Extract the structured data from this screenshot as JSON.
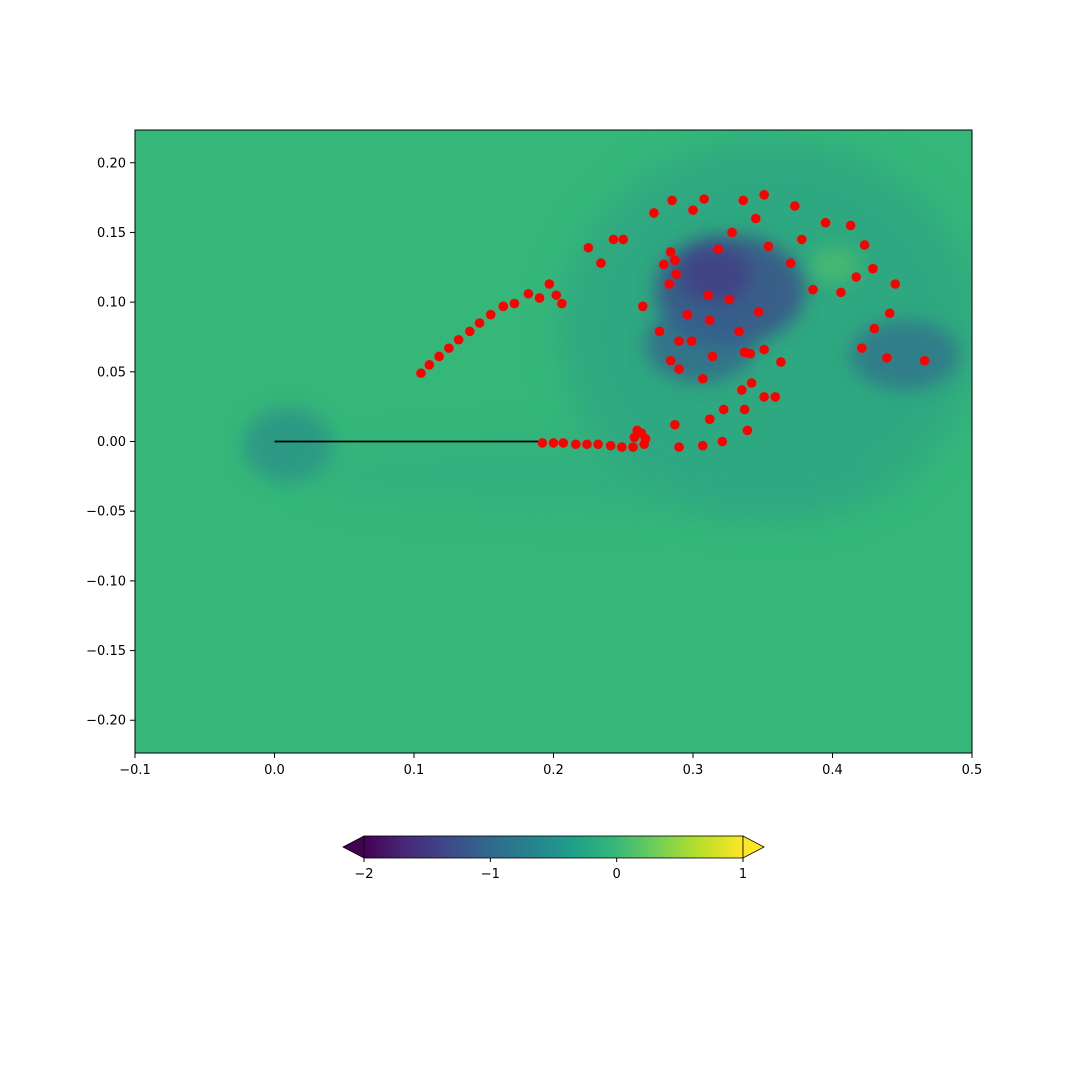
{
  "chart_data": {
    "type": "scatter",
    "xlim": [
      -0.1,
      0.5
    ],
    "ylim": [
      -0.2235,
      0.2235
    ],
    "x_ticks": [
      {
        "value": -0.1,
        "label": "−0.1"
      },
      {
        "value": 0.0,
        "label": "0.0"
      },
      {
        "value": 0.1,
        "label": "0.1"
      },
      {
        "value": 0.2,
        "label": "0.2"
      },
      {
        "value": 0.3,
        "label": "0.3"
      },
      {
        "value": 0.4,
        "label": "0.4"
      },
      {
        "value": 0.5,
        "label": "0.5"
      }
    ],
    "y_ticks": [
      {
        "value": 0.2,
        "label": "0.20"
      },
      {
        "value": 0.15,
        "label": "0.15"
      },
      {
        "value": 0.1,
        "label": "0.10"
      },
      {
        "value": 0.05,
        "label": "0.05"
      },
      {
        "value": 0.0,
        "label": "0.00"
      },
      {
        "value": -0.05,
        "label": "−0.05"
      },
      {
        "value": -0.1,
        "label": "−0.10"
      },
      {
        "value": -0.15,
        "label": "−0.15"
      },
      {
        "value": -0.2,
        "label": "−0.20"
      }
    ],
    "grid": false,
    "background_field": {
      "colormap": "viridis",
      "baseline_color": "#35b779",
      "vortex_regions": [
        {
          "x": 0.32,
          "y": 0.12,
          "strength": -1.2
        },
        {
          "x": 0.305,
          "y": 0.075,
          "strength": -0.9
        },
        {
          "x": 0.45,
          "y": 0.07,
          "strength": -0.6
        },
        {
          "x": 0.012,
          "y": -0.005,
          "strength": -0.4
        }
      ]
    },
    "plate": {
      "x": [
        0.0,
        0.19
      ],
      "y": [
        0.0,
        0.0
      ],
      "color": "#000000"
    },
    "points_color": "#ff0000",
    "points": [
      {
        "x": 0.105,
        "y": 0.049
      },
      {
        "x": 0.111,
        "y": 0.055
      },
      {
        "x": 0.118,
        "y": 0.061
      },
      {
        "x": 0.125,
        "y": 0.067
      },
      {
        "x": 0.132,
        "y": 0.073
      },
      {
        "x": 0.14,
        "y": 0.079
      },
      {
        "x": 0.147,
        "y": 0.085
      },
      {
        "x": 0.155,
        "y": 0.091
      },
      {
        "x": 0.164,
        "y": 0.097
      },
      {
        "x": 0.172,
        "y": 0.099
      },
      {
        "x": 0.182,
        "y": 0.106
      },
      {
        "x": 0.19,
        "y": 0.103
      },
      {
        "x": 0.197,
        "y": 0.113
      },
      {
        "x": 0.202,
        "y": 0.105
      },
      {
        "x": 0.206,
        "y": 0.099
      },
      {
        "x": 0.225,
        "y": 0.139
      },
      {
        "x": 0.234,
        "y": 0.128
      },
      {
        "x": 0.243,
        "y": 0.145
      },
      {
        "x": 0.25,
        "y": 0.145
      },
      {
        "x": 0.272,
        "y": 0.164
      },
      {
        "x": 0.285,
        "y": 0.173
      },
      {
        "x": 0.3,
        "y": 0.166
      },
      {
        "x": 0.308,
        "y": 0.174
      },
      {
        "x": 0.336,
        "y": 0.173
      },
      {
        "x": 0.351,
        "y": 0.177
      },
      {
        "x": 0.373,
        "y": 0.169
      },
      {
        "x": 0.395,
        "y": 0.157
      },
      {
        "x": 0.413,
        "y": 0.155
      },
      {
        "x": 0.423,
        "y": 0.141
      },
      {
        "x": 0.429,
        "y": 0.124
      },
      {
        "x": 0.445,
        "y": 0.113
      },
      {
        "x": 0.417,
        "y": 0.118
      },
      {
        "x": 0.406,
        "y": 0.107
      },
      {
        "x": 0.386,
        "y": 0.109
      },
      {
        "x": 0.37,
        "y": 0.128
      },
      {
        "x": 0.378,
        "y": 0.145
      },
      {
        "x": 0.354,
        "y": 0.14
      },
      {
        "x": 0.345,
        "y": 0.16
      },
      {
        "x": 0.328,
        "y": 0.15
      },
      {
        "x": 0.318,
        "y": 0.138
      },
      {
        "x": 0.284,
        "y": 0.136
      },
      {
        "x": 0.287,
        "y": 0.13
      },
      {
        "x": 0.279,
        "y": 0.127
      },
      {
        "x": 0.288,
        "y": 0.12
      },
      {
        "x": 0.283,
        "y": 0.113
      },
      {
        "x": 0.311,
        "y": 0.105
      },
      {
        "x": 0.326,
        "y": 0.102
      },
      {
        "x": 0.264,
        "y": 0.097
      },
      {
        "x": 0.296,
        "y": 0.091
      },
      {
        "x": 0.347,
        "y": 0.093
      },
      {
        "x": 0.312,
        "y": 0.087
      },
      {
        "x": 0.276,
        "y": 0.079
      },
      {
        "x": 0.333,
        "y": 0.079
      },
      {
        "x": 0.29,
        "y": 0.072
      },
      {
        "x": 0.299,
        "y": 0.072
      },
      {
        "x": 0.337,
        "y": 0.064
      },
      {
        "x": 0.341,
        "y": 0.063
      },
      {
        "x": 0.351,
        "y": 0.066
      },
      {
        "x": 0.314,
        "y": 0.061
      },
      {
        "x": 0.284,
        "y": 0.058
      },
      {
        "x": 0.363,
        "y": 0.057
      },
      {
        "x": 0.29,
        "y": 0.052
      },
      {
        "x": 0.307,
        "y": 0.045
      },
      {
        "x": 0.342,
        "y": 0.042
      },
      {
        "x": 0.335,
        "y": 0.037
      },
      {
        "x": 0.351,
        "y": 0.032
      },
      {
        "x": 0.359,
        "y": 0.032
      },
      {
        "x": 0.322,
        "y": 0.023
      },
      {
        "x": 0.337,
        "y": 0.023
      },
      {
        "x": 0.312,
        "y": 0.016
      },
      {
        "x": 0.287,
        "y": 0.012
      },
      {
        "x": 0.339,
        "y": 0.008
      },
      {
        "x": 0.26,
        "y": 0.008
      },
      {
        "x": 0.263,
        "y": 0.006
      },
      {
        "x": 0.258,
        "y": 0.003
      },
      {
        "x": 0.266,
        "y": 0.002
      },
      {
        "x": 0.321,
        "y": 0.0
      },
      {
        "x": 0.265,
        "y": -0.002
      },
      {
        "x": 0.307,
        "y": -0.003
      },
      {
        "x": 0.29,
        "y": -0.004
      },
      {
        "x": 0.257,
        "y": -0.004
      },
      {
        "x": 0.249,
        "y": -0.004
      },
      {
        "x": 0.241,
        "y": -0.003
      },
      {
        "x": 0.232,
        "y": -0.002
      },
      {
        "x": 0.224,
        "y": -0.002
      },
      {
        "x": 0.216,
        "y": -0.002
      },
      {
        "x": 0.207,
        "y": -0.001
      },
      {
        "x": 0.2,
        "y": -0.001
      },
      {
        "x": 0.192,
        "y": -0.001
      },
      {
        "x": 0.441,
        "y": 0.092
      },
      {
        "x": 0.43,
        "y": 0.081
      },
      {
        "x": 0.421,
        "y": 0.067
      },
      {
        "x": 0.439,
        "y": 0.06
      },
      {
        "x": 0.466,
        "y": 0.058
      }
    ],
    "colorbar": {
      "colormap": "viridis",
      "range": [
        -2,
        1
      ],
      "extend": "both",
      "ticks": [
        {
          "value": -2,
          "label": "−2"
        },
        {
          "value": -1,
          "label": "−1"
        },
        {
          "value": 0,
          "label": "0"
        },
        {
          "value": 1,
          "label": "1"
        }
      ],
      "orientation": "horizontal",
      "placement": "bottom"
    }
  }
}
